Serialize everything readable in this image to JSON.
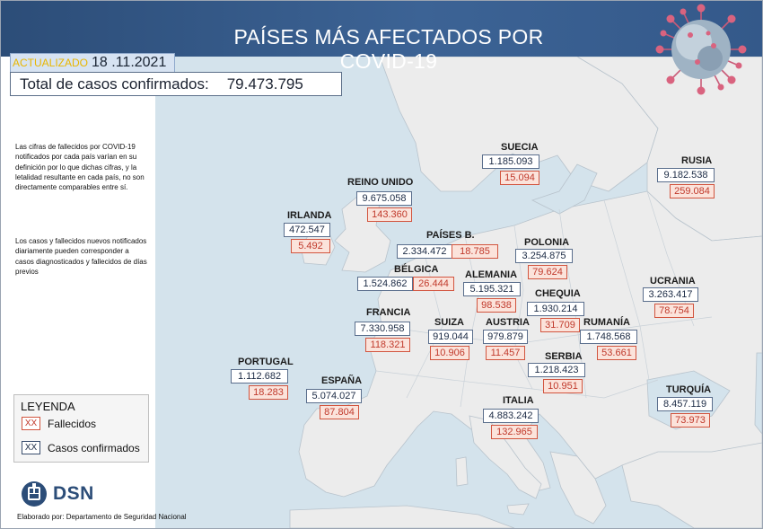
{
  "header": {
    "title": "PAÍSES MÁS AFECTADOS POR COVID-19",
    "updated_label": "ACTUALIZADO",
    "updated_date": "18 .11.2021"
  },
  "total": {
    "label": "Total de casos confirmados:",
    "value": "79.473.795"
  },
  "notes": {
    "note1": "Las cifras de fallecidos por COVID-19 notificados por cada país varían en su definición por lo que dichas cifras, y la letalidad resultante en cada país, no son directamente comparables entre sí.",
    "note2": "Los casos y fallecidos nuevos notificados diariamente pueden corresponder a casos diagnosticados y fallecidos de días previos"
  },
  "legend": {
    "title": "LEYENDA",
    "swatch_text": "XX",
    "deaths_label": "Fallecidos",
    "cases_label": "Casos confirmados",
    "deaths_color": "#d2553f",
    "cases_color": "#3a4e6e"
  },
  "footer": {
    "logo_text": "DSN",
    "credit": "Elaborado por: Departamento de Seguridad Nacional"
  },
  "colors": {
    "header": "#2c4d78",
    "sea": "#d4e3ec",
    "land": "#ededed"
  },
  "countries": [
    {
      "name": "SUECIA",
      "cases": "1.185.093",
      "deaths": "15.094"
    },
    {
      "name": "RUSIA",
      "cases": "9.182.538",
      "deaths": "259.084"
    },
    {
      "name": "REINO UNIDO",
      "cases": "9.675.058",
      "deaths": "143.360"
    },
    {
      "name": "IRLANDA",
      "cases": "472.547",
      "deaths": "5.492"
    },
    {
      "name": "PAÍSES B.",
      "cases": "2.334.472",
      "deaths": "18.785"
    },
    {
      "name": "POLONIA",
      "cases": "3.254.875",
      "deaths": "79.624"
    },
    {
      "name": "BÉLGICA",
      "cases": "1.524.862",
      "deaths": "26.444"
    },
    {
      "name": "ALEMANIA",
      "cases": "5.195.321",
      "deaths": "98.538"
    },
    {
      "name": "UCRANIA",
      "cases": "3.263.417",
      "deaths": "78.754"
    },
    {
      "name": "CHEQUIA",
      "cases": "1.930.214",
      "deaths": "31.709"
    },
    {
      "name": "FRANCIA",
      "cases": "7.330.958",
      "deaths": "118.321"
    },
    {
      "name": "SUIZA",
      "cases": "919.044",
      "deaths": "10.906"
    },
    {
      "name": "AUSTRIA",
      "cases": "979.879",
      "deaths": "11.457"
    },
    {
      "name": "RUMANÍA",
      "cases": "1.748.568",
      "deaths": "53.661"
    },
    {
      "name": "SERBIA",
      "cases": "1.218.423",
      "deaths": "10.951"
    },
    {
      "name": "PORTUGAL",
      "cases": "1.112.682",
      "deaths": "18.283"
    },
    {
      "name": "ESPAÑA",
      "cases": "5.074.027",
      "deaths": "87.804"
    },
    {
      "name": "ITALIA",
      "cases": "4.883.242",
      "deaths": "132.965"
    },
    {
      "name": "TURQUÍA",
      "cases": "8.457.119",
      "deaths": "73.973"
    }
  ]
}
